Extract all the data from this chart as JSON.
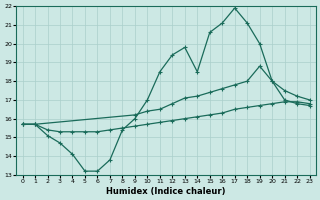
{
  "xlabel": "Humidex (Indice chaleur)",
  "xlim": [
    -0.5,
    23.5
  ],
  "ylim": [
    13,
    22
  ],
  "xticks": [
    0,
    1,
    2,
    3,
    4,
    5,
    6,
    7,
    8,
    9,
    10,
    11,
    12,
    13,
    14,
    15,
    16,
    17,
    18,
    19,
    20,
    21,
    22,
    23
  ],
  "yticks": [
    13,
    14,
    15,
    16,
    17,
    18,
    19,
    20,
    21,
    22
  ],
  "bg_color": "#cce8e4",
  "line_color": "#1a6b5a",
  "grid_color": "#aacfcb",
  "line1_x": [
    0,
    1,
    2,
    3,
    4,
    5,
    6,
    7,
    8,
    9,
    10,
    11,
    12,
    13,
    14,
    15,
    16,
    17,
    18,
    19,
    20,
    21,
    22,
    23
  ],
  "line1_y": [
    15.7,
    15.7,
    15.1,
    14.7,
    14.1,
    13.2,
    13.2,
    13.8,
    15.4,
    16.0,
    17.0,
    18.5,
    19.4,
    19.8,
    18.5,
    20.6,
    21.1,
    21.9,
    21.1,
    20.0,
    18.0,
    17.0,
    16.8,
    16.7
  ],
  "line2_x": [
    0,
    1,
    2,
    3,
    4,
    5,
    6,
    7,
    8,
    9,
    10,
    11,
    12,
    13,
    14,
    15,
    16,
    17,
    18,
    19,
    20,
    21,
    22,
    23
  ],
  "line2_y": [
    15.7,
    15.7,
    15.4,
    15.3,
    15.3,
    15.3,
    15.3,
    15.4,
    15.5,
    15.6,
    15.7,
    15.8,
    15.9,
    16.0,
    16.1,
    16.2,
    16.3,
    16.5,
    16.6,
    16.7,
    16.8,
    16.9,
    16.9,
    16.8
  ],
  "line3_x": [
    0,
    1,
    9,
    10,
    11,
    12,
    13,
    14,
    15,
    16,
    17,
    18,
    19,
    20,
    21,
    22,
    23
  ],
  "line3_y": [
    15.7,
    15.7,
    16.2,
    16.4,
    16.5,
    16.8,
    17.1,
    17.2,
    17.4,
    17.6,
    17.8,
    18.0,
    18.8,
    18.0,
    17.5,
    17.2,
    17.0
  ]
}
